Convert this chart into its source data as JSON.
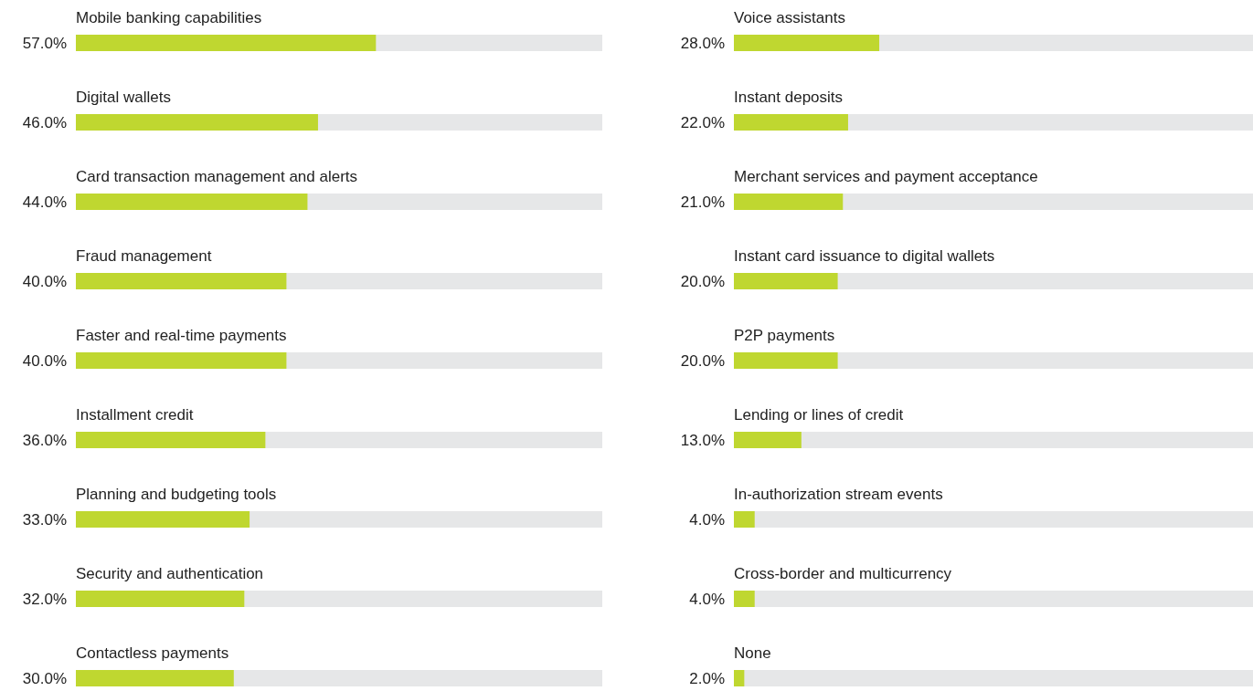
{
  "chart_data": [
    {
      "type": "bar",
      "orientation": "horizontal",
      "categories": [
        "Mobile banking capabilities",
        "Digital wallets",
        "Card transaction management and alerts",
        "Fraud management",
        "Faster and real-time payments",
        "Installment credit",
        "Planning and budgeting tools",
        "Security and authentication",
        "Contactless payments"
      ],
      "values": [
        57.0,
        46.0,
        44.0,
        40.0,
        40.0,
        36.0,
        33.0,
        32.0,
        30.0
      ],
      "value_labels": [
        "57.0%",
        "46.0%",
        "44.0%",
        "40.0%",
        "40.0%",
        "36.0%",
        "33.0%",
        "32.0%",
        "30.0%"
      ],
      "color": "#bfd730",
      "xlim": [
        0,
        100
      ]
    },
    {
      "type": "bar",
      "orientation": "horizontal",
      "categories": [
        "Voice assistants",
        "Instant deposits",
        "Merchant services and payment acceptance",
        "Instant card issuance to digital wallets",
        "P2P payments",
        "Lending or lines of credit",
        "In-authorization stream events",
        "Cross-border and multicurrency",
        "None"
      ],
      "values": [
        28.0,
        22.0,
        21.0,
        20.0,
        20.0,
        13.0,
        4.0,
        4.0,
        2.0
      ],
      "value_labels": [
        "28.0%",
        "22.0%",
        "21.0%",
        "20.0%",
        "20.0%",
        "13.0%",
        "4.0%",
        "4.0%",
        "2.0%"
      ],
      "color": "#bfd730",
      "xlim": [
        0,
        100
      ]
    }
  ]
}
